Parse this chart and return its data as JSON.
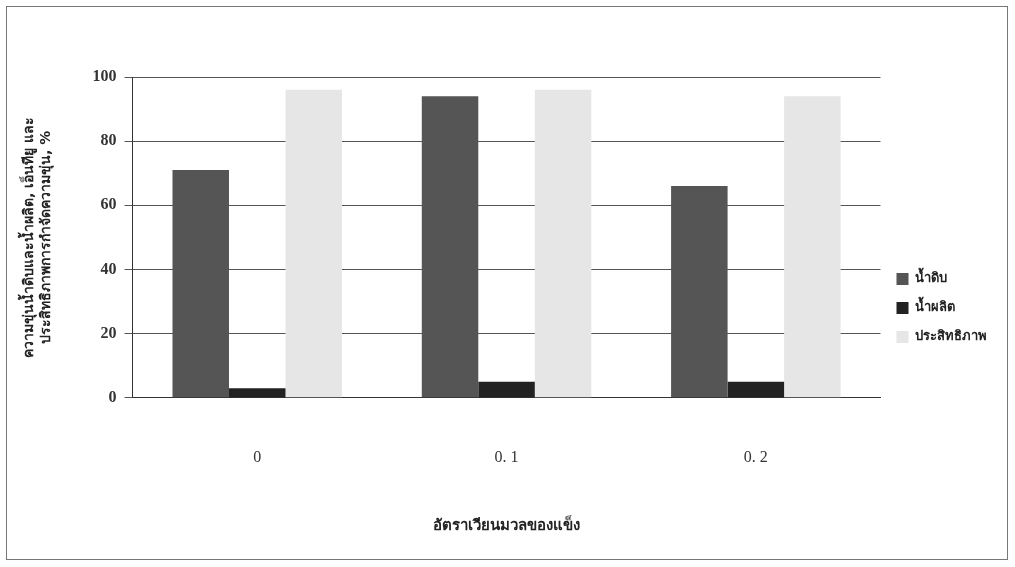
{
  "chart_data": {
    "type": "bar",
    "xlabel": "อัตราเวียนมวลของแข็ง",
    "ylabel": "ความขุ่นน้ำดิบและน้ำผลิต, เอ็นทียู และ\nประสิทธิภาพการกำจัดความขุ่น, %",
    "categories": [
      "0",
      "0. 1",
      "0. 2"
    ],
    "series": [
      {
        "name": "น้ำดิบ",
        "color": "#555555",
        "values": [
          71,
          94,
          66
        ]
      },
      {
        "name": "น้ำผลิต",
        "color": "#222222",
        "values": [
          3,
          5,
          5
        ]
      },
      {
        "name": "ประสิทธิภาพ",
        "color": "#e6e6e6",
        "values": [
          96,
          96,
          94
        ]
      }
    ],
    "ylim": [
      0,
      100
    ],
    "yticks": [
      0,
      20,
      40,
      60,
      80,
      100
    ],
    "grid": "y",
    "legend": "right"
  }
}
